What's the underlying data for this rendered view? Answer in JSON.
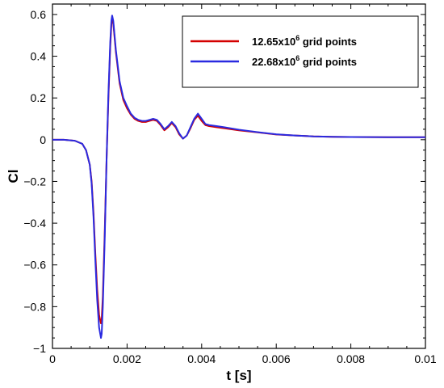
{
  "chart_data": {
    "type": "line",
    "xlabel": "t [s]",
    "ylabel": "Cl",
    "xlim": [
      0,
      0.01
    ],
    "ylim": [
      -1,
      0.65
    ],
    "x_ticks": [
      0,
      0.002,
      0.004,
      0.006,
      0.008,
      0.01
    ],
    "x_tick_labels": [
      "0",
      "0.002",
      "0.004",
      "0.006",
      "0.008",
      "0.01"
    ],
    "y_ticks": [
      -1,
      -0.8,
      -0.6,
      -0.4,
      -0.2,
      0,
      0.2,
      0.4,
      0.6
    ],
    "y_tick_labels": [
      "−1",
      "−0.8",
      "−0.6",
      "−0.4",
      "−0.2",
      "0",
      "0.2",
      "0.4",
      "0.6"
    ],
    "grid": false,
    "legend_position": "top-right",
    "series": [
      {
        "name": "12.65x10^6 grid points",
        "legend_prefix": "12.65x10",
        "legend_exponent": "6",
        "legend_suffix": " grid points",
        "color": "#d40000",
        "x": [
          0,
          0.0003,
          0.0006,
          0.0008,
          0.0009,
          0.001,
          0.00105,
          0.0011,
          0.00115,
          0.0012,
          0.00125,
          0.0013,
          0.00132,
          0.00135,
          0.0014,
          0.00145,
          0.0015,
          0.00155,
          0.00158,
          0.0016,
          0.00163,
          0.0017,
          0.0018,
          0.0019,
          0.002,
          0.0021,
          0.0022,
          0.0023,
          0.0024,
          0.0025,
          0.0026,
          0.0027,
          0.0028,
          0.0029,
          0.003,
          0.0031,
          0.0032,
          0.0033,
          0.0034,
          0.0035,
          0.0036,
          0.0037,
          0.0038,
          0.0039,
          0.004,
          0.0041,
          0.0042,
          0.0044,
          0.0046,
          0.005,
          0.0055,
          0.006,
          0.0065,
          0.007,
          0.0075,
          0.008,
          0.009,
          0.01
        ],
        "y": [
          0,
          0,
          -0.005,
          -0.02,
          -0.05,
          -0.12,
          -0.2,
          -0.35,
          -0.55,
          -0.72,
          -0.84,
          -0.88,
          -0.86,
          -0.75,
          -0.45,
          -0.1,
          0.2,
          0.45,
          0.55,
          0.58,
          0.56,
          0.42,
          0.27,
          0.19,
          0.15,
          0.12,
          0.1,
          0.09,
          0.085,
          0.085,
          0.09,
          0.095,
          0.09,
          0.07,
          0.045,
          0.06,
          0.08,
          0.06,
          0.025,
          0.005,
          0.02,
          0.055,
          0.095,
          0.115,
          0.09,
          0.07,
          0.065,
          0.06,
          0.055,
          0.045,
          0.035,
          0.025,
          0.02,
          0.016,
          0.014,
          0.013,
          0.012,
          0.012
        ]
      },
      {
        "name": "22.68x10^6 grid points",
        "legend_prefix": "22.68x10",
        "legend_exponent": "6",
        "legend_suffix": " grid points",
        "color": "#2a2ae0",
        "x": [
          0,
          0.0003,
          0.0006,
          0.0008,
          0.0009,
          0.001,
          0.00105,
          0.0011,
          0.00115,
          0.0012,
          0.00125,
          0.0013,
          0.00132,
          0.00135,
          0.0014,
          0.00145,
          0.0015,
          0.00155,
          0.00158,
          0.0016,
          0.00163,
          0.0017,
          0.0018,
          0.0019,
          0.002,
          0.0021,
          0.0022,
          0.0023,
          0.0024,
          0.0025,
          0.0026,
          0.0027,
          0.0028,
          0.0029,
          0.003,
          0.0031,
          0.0032,
          0.0033,
          0.0034,
          0.0035,
          0.0036,
          0.0037,
          0.0038,
          0.0039,
          0.004,
          0.0041,
          0.0042,
          0.0044,
          0.0046,
          0.005,
          0.0055,
          0.006,
          0.0065,
          0.007,
          0.0075,
          0.008,
          0.009,
          0.01
        ],
        "y": [
          0,
          0,
          -0.005,
          -0.02,
          -0.05,
          -0.12,
          -0.21,
          -0.37,
          -0.58,
          -0.77,
          -0.9,
          -0.95,
          -0.93,
          -0.8,
          -0.48,
          -0.1,
          0.22,
          0.47,
          0.57,
          0.595,
          0.57,
          0.43,
          0.28,
          0.2,
          0.16,
          0.125,
          0.105,
          0.095,
          0.09,
          0.09,
          0.095,
          0.1,
          0.095,
          0.075,
          0.05,
          0.065,
          0.085,
          0.065,
          0.03,
          0.005,
          0.02,
          0.06,
          0.1,
          0.125,
          0.1,
          0.075,
          0.07,
          0.065,
          0.06,
          0.048,
          0.036,
          0.026,
          0.02,
          0.016,
          0.014,
          0.013,
          0.012,
          0.012
        ]
      }
    ]
  }
}
